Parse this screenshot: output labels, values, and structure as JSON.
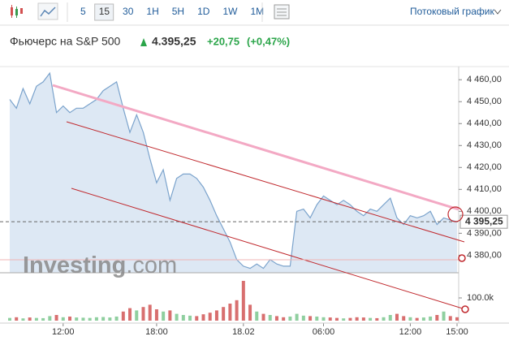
{
  "toolbar": {
    "intervals": [
      "5",
      "15",
      "30",
      "1H",
      "5H",
      "1D",
      "1W",
      "1M"
    ],
    "active": 1,
    "stream": "Потоковый график"
  },
  "header": {
    "title": "Фьючерс на S&P 500",
    "price": "4.395,25",
    "change": "+20,75",
    "change_pct": "(+0,47%)"
  },
  "chart": {
    "type": "area",
    "watermark": "Investing",
    "watermark_suffix": ".com",
    "line_color": "#7ba3cc",
    "fill_color": "#dde8f4",
    "values": [
      4451,
      4447,
      4456,
      4449,
      4457,
      4459,
      4463,
      4445,
      4448,
      4445,
      4447,
      4447,
      4449,
      4451,
      4455,
      4457,
      4459,
      4447,
      4436,
      4444,
      4436,
      4424,
      4413,
      4419,
      4405,
      4415,
      4417,
      4417,
      4415,
      4411,
      4405,
      4398,
      4392,
      4386,
      4378,
      4375,
      4374,
      4376,
      4374,
      4378,
      4376,
      4375,
      4375,
      4400,
      4401,
      4397,
      4403,
      4407,
      4405,
      4403,
      4405,
      4403,
      4400,
      4398,
      4401,
      4400,
      4403,
      4406,
      4397,
      4394,
      4398,
      4397,
      4398,
      4400,
      4394,
      4397,
      4396,
      4395.25
    ],
    "ylim": [
      4372,
      4466
    ],
    "yticks": [
      {
        "value": 4380,
        "label": "4 380,00"
      },
      {
        "value": 4390,
        "label": "4 390,00"
      },
      {
        "value": 4400,
        "label": "4 400,00"
      },
      {
        "value": 4410,
        "label": "4 410,00"
      },
      {
        "value": 4420,
        "label": "4 420,00"
      },
      {
        "value": 4430,
        "label": "4 430,00"
      },
      {
        "value": 4440,
        "label": "4 440,00"
      },
      {
        "value": 4450,
        "label": "4 450,00"
      },
      {
        "value": 4460,
        "label": "4 460,00"
      }
    ],
    "last": {
      "value": 4395.25,
      "label": "4 395,25"
    },
    "xticks": [
      {
        "index": 8,
        "label": "12:00"
      },
      {
        "index": 22,
        "label": "18:00"
      },
      {
        "index": 35,
        "label": "18.02"
      },
      {
        "index": 47,
        "label": "06:00"
      },
      {
        "index": 60,
        "label": "12:00"
      },
      {
        "index": 67,
        "label": "15:00"
      }
    ],
    "volume": {
      "up_color": "#8fcf9f",
      "down_color": "#d86f6f",
      "values": [
        12000,
        15000,
        10000,
        14000,
        12000,
        11000,
        20000,
        25000,
        15000,
        18000,
        14000,
        13000,
        12000,
        15000,
        16000,
        14000,
        18000,
        40000,
        55000,
        45000,
        60000,
        70000,
        50000,
        40000,
        45000,
        30000,
        25000,
        22000,
        20000,
        28000,
        35000,
        45000,
        60000,
        75000,
        90000,
        175000,
        70000,
        40000,
        30000,
        25000,
        20000,
        15000,
        18000,
        30000,
        22000,
        20000,
        18000,
        15000,
        14000,
        12000,
        10000,
        12000,
        15000,
        14000,
        12000,
        11000,
        15000,
        25000,
        30000,
        20000,
        15000,
        12000,
        14000,
        18000,
        25000,
        40000,
        20000,
        15000
      ],
      "ylim": [
        0,
        175000
      ],
      "ticks": [
        {
          "value": 100000,
          "label": "100.0k"
        }
      ]
    }
  }
}
